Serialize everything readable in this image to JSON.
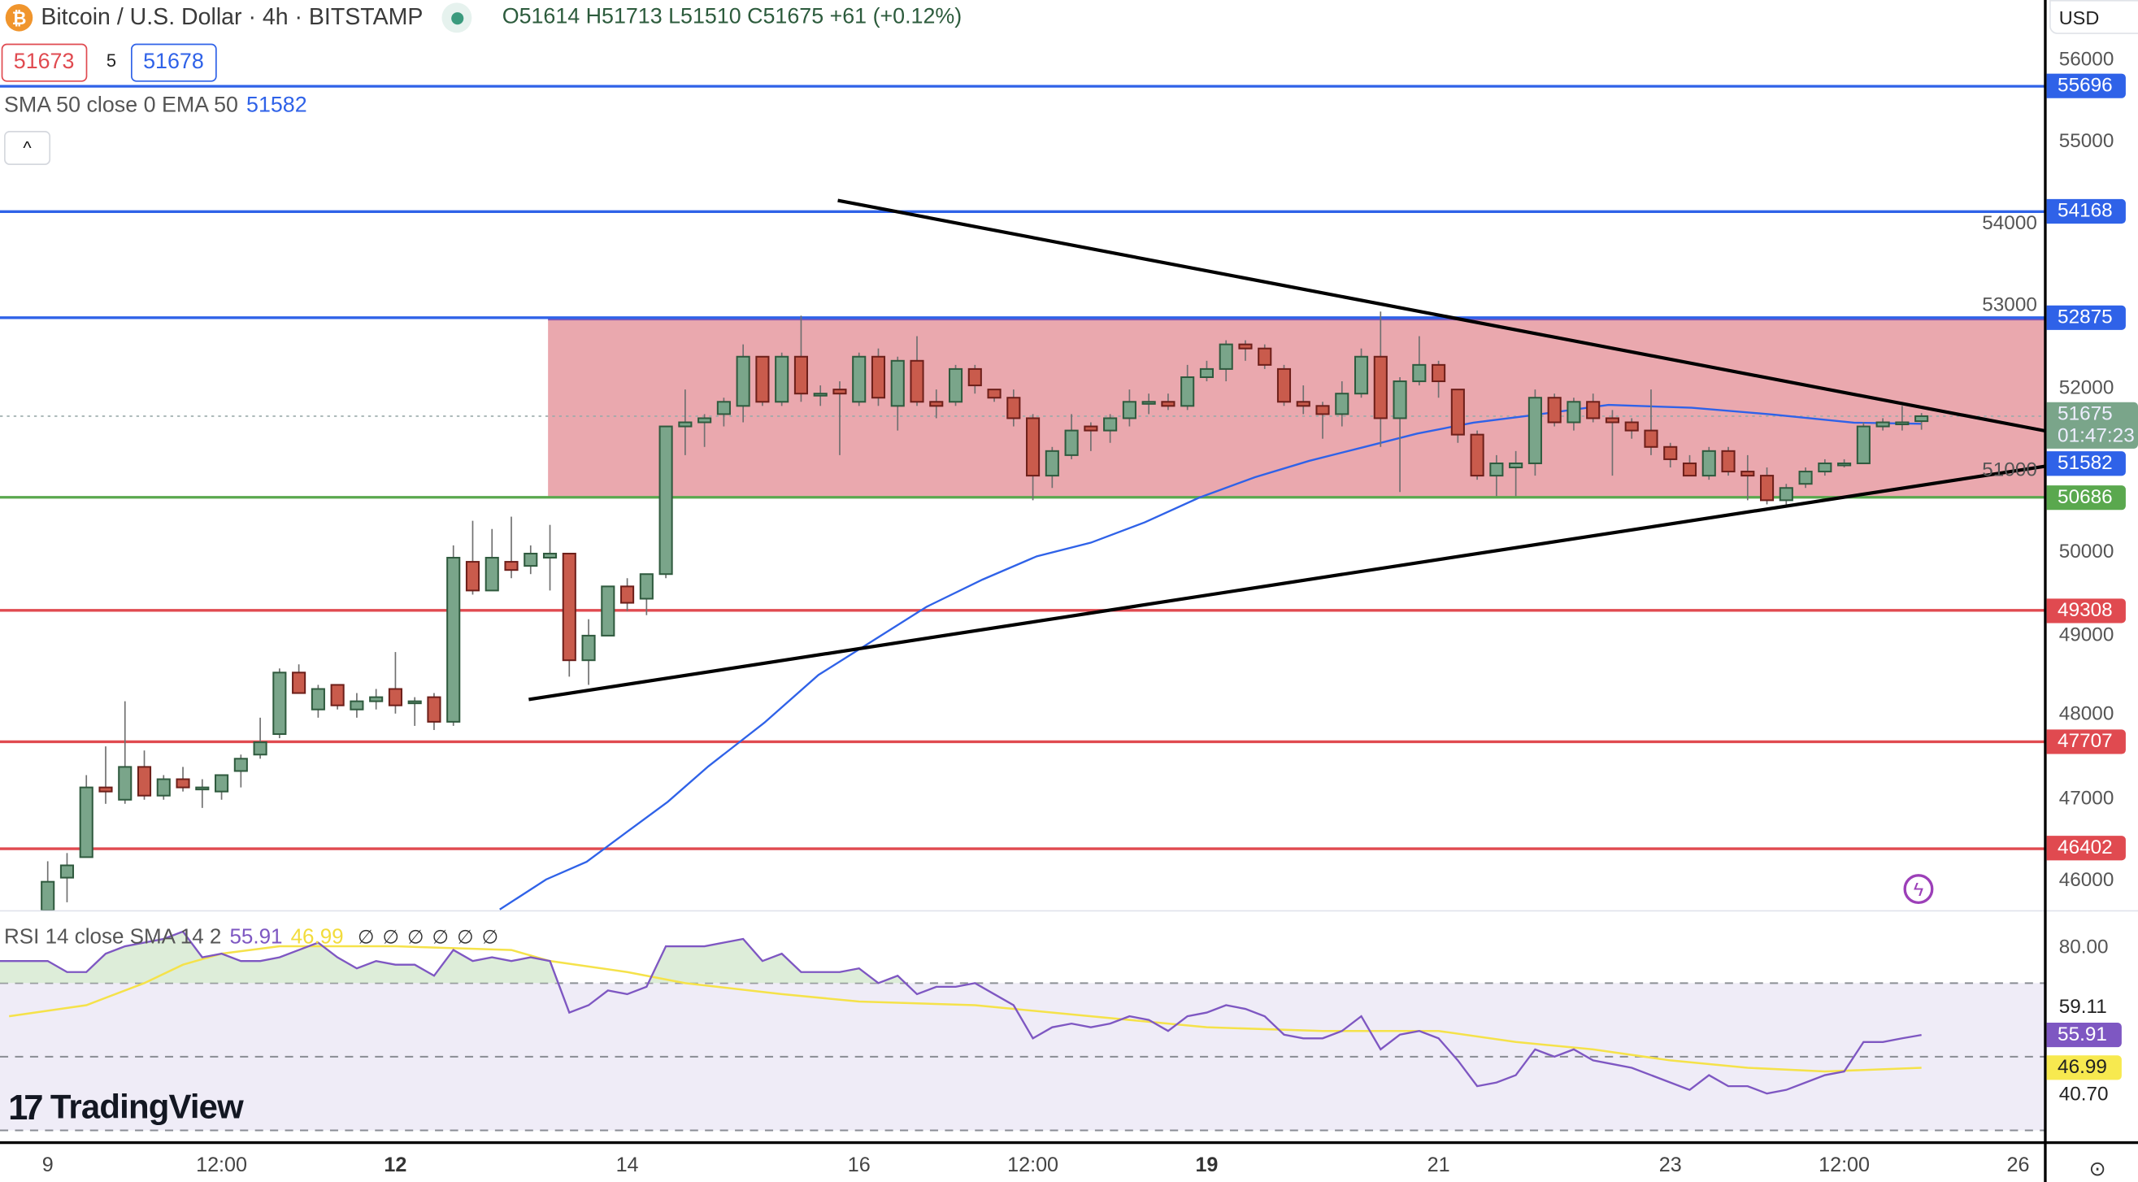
{
  "header": {
    "symbol_icon": "bitcoin-icon",
    "title": "Bitcoin / U.S. Dollar · 4h · BITSTAMP",
    "market_status": "open",
    "ohlc": "O51614 H51713 L51510 C51675 +61 (+0.12%)",
    "sell_price": "51673",
    "spread": "5",
    "buy_price": "51678",
    "collapse_icon": "chevron-up-icon"
  },
  "indicators": {
    "sma_legend": "SMA 50 close 0 EMA 50",
    "sma_value": "51582",
    "rsi_legend": "RSI 14 close SMA 14 2",
    "rsi_value": "55.91",
    "rsi_ma_value": "46.99",
    "rsi_na": [
      "∅",
      "∅",
      "∅",
      "∅",
      "∅",
      "∅"
    ]
  },
  "watermark": "TradingView",
  "price_axis": {
    "currency": "USD",
    "current_price": "51675",
    "countdown": "01:47:23",
    "sma_tag": "51582",
    "rsi_ticks": [
      "80.00",
      "59.11",
      "40.70"
    ]
  },
  "colors": {
    "up": "#7aa58a",
    "up_border": "#2f5a3e",
    "down": "#c95b4c",
    "down_border": "#6d1f1a",
    "blue_level": "#2f62e8",
    "red_level": "#e04a50",
    "green_level": "#5aa84e",
    "zone": "#e9a3aa",
    "sma": "#2f62e8",
    "rsi": "#7e57c2",
    "rsi_ma": "#f5e24a"
  },
  "chart_data": {
    "type": "candlestick",
    "timeframe": "4h",
    "x_ticks": [
      {
        "label": "9",
        "bar": 0,
        "bold": false
      },
      {
        "label": "12:00",
        "bar": 9,
        "bold": false
      },
      {
        "label": "12",
        "bar": 18,
        "bold": true
      },
      {
        "label": "14",
        "bar": 30,
        "bold": false
      },
      {
        "label": "16",
        "bar": 42,
        "bold": false
      },
      {
        "label": "12:00",
        "bar": 51,
        "bold": false
      },
      {
        "label": "19",
        "bar": 60,
        "bold": true
      },
      {
        "label": "21",
        "bar": 72,
        "bold": false
      },
      {
        "label": "23",
        "bar": 84,
        "bold": false
      },
      {
        "label": "12:00",
        "bar": 93,
        "bold": false
      },
      {
        "label": "26",
        "bar": 102,
        "bold": false
      }
    ],
    "y_ticks": [
      56000,
      55000,
      54000,
      53000,
      52000,
      51000,
      50000,
      49000,
      48000,
      47000,
      46000
    ],
    "candles": [
      [
        45650,
        46250,
        45600,
        46000
      ],
      [
        46050,
        46350,
        45750,
        46200
      ],
      [
        46300,
        47300,
        46300,
        47150
      ],
      [
        47150,
        47650,
        46950,
        47100
      ],
      [
        47000,
        48200,
        46950,
        47400
      ],
      [
        47400,
        47600,
        47000,
        47050
      ],
      [
        47050,
        47300,
        47000,
        47250
      ],
      [
        47250,
        47400,
        47100,
        47150
      ],
      [
        47150,
        47250,
        46900,
        47150
      ],
      [
        47100,
        47300,
        47000,
        47300
      ],
      [
        47350,
        47550,
        47150,
        47500
      ],
      [
        47550,
        48000,
        47500,
        47700
      ],
      [
        47800,
        48600,
        47750,
        48550
      ],
      [
        48550,
        48650,
        48300,
        48300
      ],
      [
        48100,
        48400,
        48000,
        48350
      ],
      [
        48400,
        48400,
        48100,
        48150
      ],
      [
        48100,
        48300,
        48000,
        48200
      ],
      [
        48200,
        48350,
        48100,
        48250
      ],
      [
        48350,
        48800,
        48050,
        48150
      ],
      [
        48200,
        48250,
        47900,
        48200
      ],
      [
        48250,
        48300,
        47850,
        47950
      ],
      [
        47950,
        50100,
        47900,
        49950
      ],
      [
        49900,
        50400,
        49500,
        49550
      ],
      [
        49550,
        50300,
        49600,
        49950
      ],
      [
        49900,
        50450,
        49700,
        49800
      ],
      [
        49850,
        50100,
        49750,
        50000
      ],
      [
        49950,
        50350,
        49550,
        50000
      ],
      [
        50000,
        50000,
        48500,
        48700
      ],
      [
        48700,
        49200,
        48400,
        49000
      ],
      [
        49000,
        49600,
        49000,
        49600
      ],
      [
        49600,
        49700,
        49300,
        49400
      ],
      [
        49450,
        49700,
        49250,
        49750
      ],
      [
        49750,
        51550,
        49700,
        51550
      ],
      [
        51550,
        52000,
        51200,
        51600
      ],
      [
        51600,
        51700,
        51300,
        51650
      ],
      [
        51700,
        51900,
        51550,
        51850
      ],
      [
        51800,
        52550,
        51600,
        52400
      ],
      [
        52400,
        52400,
        51800,
        51850
      ],
      [
        51850,
        52450,
        51800,
        52400
      ],
      [
        52400,
        52900,
        51850,
        51950
      ],
      [
        51950,
        52050,
        51800,
        51950
      ],
      [
        52000,
        52100,
        51200,
        51950
      ],
      [
        51850,
        52450,
        51800,
        52400
      ],
      [
        52400,
        52500,
        51800,
        51900
      ],
      [
        51800,
        52400,
        51500,
        52350
      ],
      [
        52350,
        52650,
        51800,
        51850
      ],
      [
        51850,
        52000,
        51650,
        51800
      ],
      [
        51850,
        52300,
        51800,
        52250
      ],
      [
        52250,
        52300,
        51950,
        52050
      ],
      [
        52000,
        52000,
        51850,
        51900
      ],
      [
        51900,
        52000,
        51550,
        51650
      ],
      [
        51650,
        51700,
        50650,
        50950
      ],
      [
        50950,
        51300,
        50800,
        51250
      ],
      [
        51200,
        51700,
        51150,
        51500
      ],
      [
        51550,
        51600,
        51250,
        51500
      ],
      [
        51500,
        51700,
        51350,
        51650
      ],
      [
        51650,
        52000,
        51550,
        51850
      ],
      [
        51850,
        51950,
        51700,
        51850
      ],
      [
        51850,
        51950,
        51750,
        51800
      ],
      [
        51800,
        52300,
        51750,
        52150
      ],
      [
        52150,
        52350,
        52100,
        52250
      ],
      [
        52250,
        52600,
        52100,
        52550
      ],
      [
        52550,
        52600,
        52350,
        52500
      ],
      [
        52500,
        52550,
        52250,
        52300
      ],
      [
        52250,
        52300,
        51800,
        51850
      ],
      [
        51850,
        52050,
        51700,
        51800
      ],
      [
        51800,
        51850,
        51400,
        51700
      ],
      [
        51700,
        52100,
        51550,
        51950
      ],
      [
        51950,
        52500,
        51900,
        52400
      ],
      [
        52400,
        52950,
        51300,
        51650
      ],
      [
        51650,
        52150,
        50750,
        52100
      ],
      [
        52100,
        52650,
        52050,
        52300
      ],
      [
        52300,
        52350,
        51900,
        52100
      ],
      [
        52000,
        52000,
        51350,
        51450
      ],
      [
        51450,
        51500,
        50900,
        50950
      ],
      [
        50950,
        51200,
        50700,
        51100
      ],
      [
        51050,
        51250,
        50700,
        51100
      ],
      [
        51100,
        52000,
        50950,
        51900
      ],
      [
        51900,
        51950,
        51550,
        51600
      ],
      [
        51600,
        51900,
        51500,
        51850
      ],
      [
        51850,
        51950,
        51600,
        51650
      ],
      [
        51650,
        51750,
        50950,
        51600
      ],
      [
        51600,
        51650,
        51400,
        51500
      ],
      [
        51500,
        52000,
        51200,
        51300
      ],
      [
        51300,
        51350,
        51050,
        51150
      ],
      [
        51100,
        51200,
        50950,
        50950
      ],
      [
        50950,
        51300,
        50900,
        51250
      ],
      [
        51250,
        51300,
        50950,
        51000
      ],
      [
        51000,
        51200,
        50650,
        50950
      ],
      [
        50950,
        51050,
        50600,
        50650
      ],
      [
        50650,
        50850,
        50600,
        50800
      ],
      [
        50850,
        51050,
        50800,
        51000
      ],
      [
        51000,
        51150,
        50950,
        51100
      ],
      [
        51100,
        51150,
        51050,
        51100
      ],
      [
        51100,
        51600,
        51100,
        51550
      ],
      [
        51550,
        51650,
        51500,
        51600
      ],
      [
        51600,
        51800,
        51500,
        51600
      ],
      [
        51614,
        51713,
        51510,
        51675
      ]
    ],
    "horizontal_levels": [
      {
        "price": 55696,
        "label": "55696",
        "color": "#2f62e8"
      },
      {
        "price": 54168,
        "label": "54168",
        "color": "#2f62e8"
      },
      {
        "price": 52875,
        "label": "52875",
        "color": "#2f62e8"
      },
      {
        "price": 50686,
        "label": "50686",
        "color": "#5aa84e"
      },
      {
        "price": 49308,
        "label": "49308",
        "color": "#e04a50"
      },
      {
        "price": 47707,
        "label": "47707",
        "color": "#e04a50"
      },
      {
        "price": 46402,
        "label": "46402",
        "color": "#e04a50"
      }
    ],
    "zone": {
      "from_bar": 25.9,
      "top": 52875,
      "bottom": 50686
    },
    "trendlines": [
      [
        [
          40.9,
          54305
        ],
        [
          103.4,
          51496
        ]
      ],
      [
        [
          24.9,
          48222
        ],
        [
          103.4,
          51064
        ]
      ]
    ],
    "sma_line": [
      [
        23.4,
        45662
      ],
      [
        25.8,
        46028
      ],
      [
        27.9,
        46244
      ],
      [
        30,
        46610
      ],
      [
        32.1,
        46975
      ],
      [
        34.2,
        47407
      ],
      [
        37.1,
        47939
      ],
      [
        39.9,
        48521
      ],
      [
        42.7,
        48936
      ],
      [
        45.5,
        49352
      ],
      [
        48.4,
        49684
      ],
      [
        51.2,
        49967
      ],
      [
        54,
        50133
      ],
      [
        56.8,
        50382
      ],
      [
        59.6,
        50681
      ],
      [
        62.5,
        50931
      ],
      [
        65.3,
        51130
      ],
      [
        68.1,
        51296
      ],
      [
        70.9,
        51463
      ],
      [
        73.8,
        51596
      ],
      [
        76.6,
        51679
      ],
      [
        80.8,
        51812
      ],
      [
        85.1,
        51778
      ],
      [
        89.3,
        51695
      ],
      [
        93.5,
        51596
      ],
      [
        97,
        51582
      ]
    ],
    "rsi": {
      "bands": [
        70,
        50,
        30
      ],
      "range": [
        24,
        88
      ],
      "values": [
        76,
        73,
        73,
        78,
        80,
        81,
        82,
        84,
        77,
        78,
        76,
        76,
        77,
        79,
        81,
        77,
        74,
        76,
        75,
        75,
        72,
        79,
        76,
        77,
        76,
        77,
        76,
        62,
        64,
        68,
        67,
        69,
        80,
        80,
        80,
        81,
        82,
        76,
        78,
        73,
        73,
        73,
        74,
        70,
        72,
        67,
        69,
        69,
        70,
        67,
        64,
        55,
        58,
        59,
        58,
        59,
        61,
        60,
        57,
        61,
        62,
        64,
        63,
        61,
        56,
        55,
        55,
        57,
        61,
        52,
        56,
        57,
        55,
        49,
        42,
        43,
        45,
        52,
        50,
        52,
        49,
        48,
        47,
        45,
        43,
        41,
        45,
        42,
        42,
        40,
        41,
        43,
        45,
        46,
        54,
        54,
        55,
        55.91
      ],
      "ma": [
        [
          -2,
          61
        ],
        [
          2,
          64
        ],
        [
          5,
          70
        ],
        [
          7,
          75
        ],
        [
          9,
          78
        ],
        [
          12,
          80
        ],
        [
          18,
          80
        ],
        [
          24,
          79
        ],
        [
          26,
          76
        ],
        [
          30,
          73
        ],
        [
          33,
          70
        ],
        [
          38,
          67
        ],
        [
          42,
          65
        ],
        [
          48,
          64
        ],
        [
          54,
          61
        ],
        [
          60,
          58
        ],
        [
          66,
          57
        ],
        [
          72,
          57
        ],
        [
          76,
          54
        ],
        [
          80,
          52
        ],
        [
          84,
          49
        ],
        [
          88,
          47
        ],
        [
          92,
          46
        ],
        [
          97,
          46.99
        ]
      ]
    }
  }
}
